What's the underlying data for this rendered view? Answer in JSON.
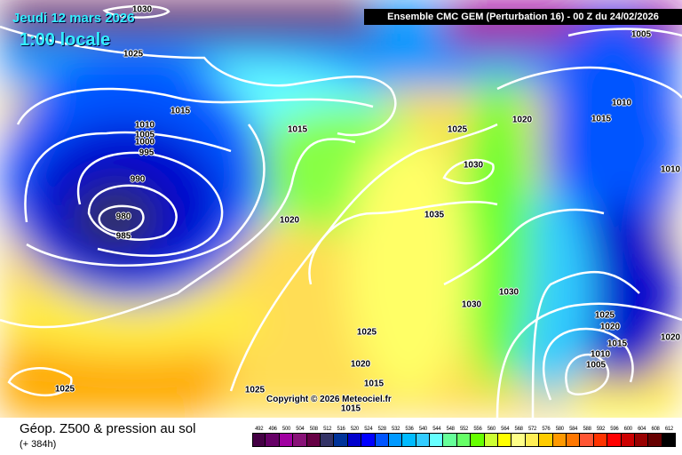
{
  "header": {
    "date": "Jeudi 12 mars 2026",
    "time": "1:00 locale",
    "title": "Ensemble CMC GEM  (Perturbation 16)  -  00 Z du 24/02/2026"
  },
  "copyright": "Copyright © 2026 Meteociel.fr",
  "footer": {
    "title": "Géop. Z500 & pression au sol",
    "subtitle": "(+ 384h)"
  },
  "isobar_labels": [
    "1030",
    "1025",
    "1015",
    "1010",
    "1005",
    "1000",
    "995",
    "990",
    "980",
    "985",
    "1015",
    "1020",
    "1025",
    "1020",
    "1005",
    "1015",
    "1010",
    "1010",
    "1030",
    "1035",
    "1030",
    "1030",
    "1025",
    "1020",
    "1015",
    "1015",
    "1025",
    "1025",
    "1025",
    "1020",
    "1015",
    "1010",
    "1005",
    "1020"
  ],
  "legend": {
    "values": [
      "492",
      "496",
      "500",
      "504",
      "508",
      "512",
      "516",
      "520",
      "524",
      "528",
      "532",
      "536",
      "540",
      "544",
      "548",
      "552",
      "556",
      "560",
      "564",
      "568",
      "572",
      "576",
      "580",
      "584",
      "588",
      "592",
      "596",
      "600",
      "604",
      "608",
      "612"
    ],
    "colors": [
      "#440044",
      "#660066",
      "#a000a0",
      "#881177",
      "#660044",
      "#333366",
      "#003399",
      "#0000cc",
      "#0000ff",
      "#0055ff",
      "#0099ff",
      "#00bbff",
      "#33ccff",
      "#66ffff",
      "#66ff99",
      "#66ff66",
      "#66ff00",
      "#ccff33",
      "#ffff00",
      "#ffff88",
      "#ffee55",
      "#ffcc00",
      "#ff9900",
      "#ff7700",
      "#ff5533",
      "#ff3300",
      "#ff0000",
      "#cc0000",
      "#990000",
      "#660000",
      "#000000"
    ]
  }
}
